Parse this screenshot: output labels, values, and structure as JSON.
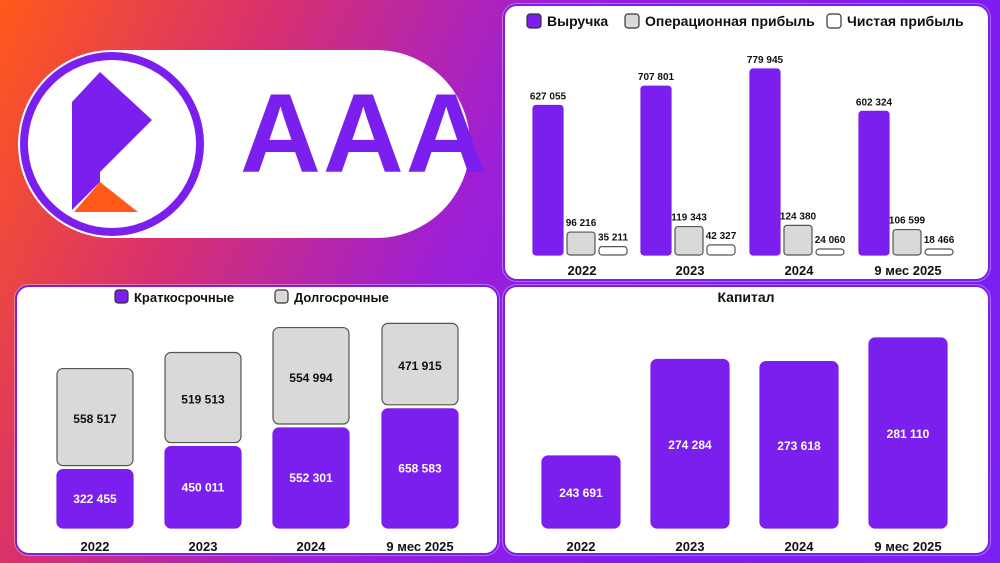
{
  "logo": {
    "rating_text": "AAA",
    "icon": "company-logo-icon"
  },
  "colors": {
    "purple": "#7b1fee",
    "gray": "#d9d9d9",
    "white": "#ffffff",
    "orange": "#ff5a1a"
  },
  "chart_data": [
    {
      "id": "income",
      "type": "bar",
      "categories": [
        "2022",
        "2023",
        "2024",
        "9 мес 2025"
      ],
      "series": [
        {
          "name": "Выручка",
          "values": [
            627055,
            707801,
            779945,
            602324
          ],
          "labels": [
            "627 055",
            "707 801",
            "779 945",
            "602 324"
          ]
        },
        {
          "name": "Операционная прибыль",
          "values": [
            96216,
            119343,
            124380,
            106599
          ],
          "labels": [
            "96 216",
            "119 343",
            "124 380",
            "106 599"
          ]
        },
        {
          "name": "Чистая прибыль",
          "values": [
            35211,
            42327,
            24060,
            18466
          ],
          "labels": [
            "35 211",
            "42 327",
            "24 060",
            "18 466"
          ]
        }
      ],
      "legend_position": "top",
      "grid": false
    },
    {
      "id": "liabilities",
      "type": "bar",
      "stacked": true,
      "categories": [
        "2022",
        "2023",
        "2024",
        "9 мес 2025"
      ],
      "series": [
        {
          "name": "Краткосрочные",
          "values": [
            322455,
            450011,
            552301,
            658583
          ],
          "labels": [
            "322 455",
            "450 011",
            "552 301",
            "658 583"
          ]
        },
        {
          "name": "Долгосрочные",
          "values": [
            558517,
            519513,
            554994,
            471915
          ],
          "labels": [
            "558 517",
            "519 513",
            "554 994",
            "471 915"
          ]
        }
      ],
      "legend_position": "top",
      "grid": false
    },
    {
      "id": "capital",
      "type": "bar",
      "title": "Капитал",
      "categories": [
        "2022",
        "2023",
        "2024",
        "9 мес 2025"
      ],
      "values": [
        243691,
        274284,
        273618,
        281110
      ],
      "labels": [
        "243 691",
        "274 284",
        "273 618",
        "281 110"
      ],
      "grid": false
    }
  ]
}
